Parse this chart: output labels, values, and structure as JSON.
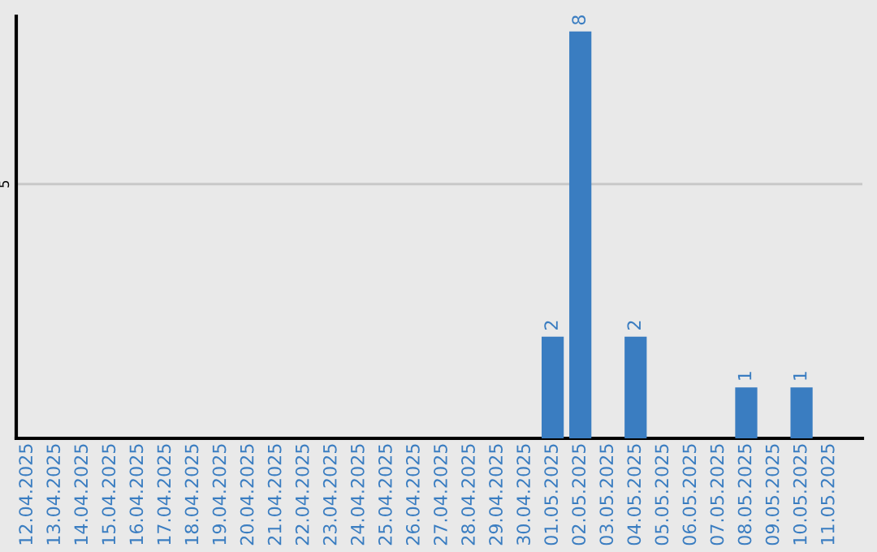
{
  "chart_data": {
    "type": "bar",
    "categories": [
      "12.04.2025",
      "13.04.2025",
      "14.04.2025",
      "15.04.2025",
      "16.04.2025",
      "17.04.2025",
      "18.04.2025",
      "19.04.2025",
      "20.04.2025",
      "21.04.2025",
      "22.04.2025",
      "23.04.2025",
      "24.04.2025",
      "25.04.2025",
      "26.04.2025",
      "27.04.2025",
      "28.04.2025",
      "29.04.2025",
      "30.04.2025",
      "01.05.2025",
      "02.05.2025",
      "03.05.2025",
      "04.05.2025",
      "05.05.2025",
      "06.05.2025",
      "07.05.2025",
      "08.05.2025",
      "09.05.2025",
      "10.05.2025",
      "11.05.2025"
    ],
    "values": [
      null,
      null,
      null,
      null,
      null,
      null,
      null,
      null,
      null,
      null,
      null,
      null,
      null,
      null,
      null,
      null,
      null,
      null,
      null,
      2,
      8,
      null,
      2,
      null,
      null,
      null,
      1,
      null,
      1,
      null
    ],
    "color": "#3a7dc1",
    "ylim": [
      0,
      8.3
    ],
    "yticks": [
      5
    ],
    "grid": "y",
    "data_labels": true
  }
}
